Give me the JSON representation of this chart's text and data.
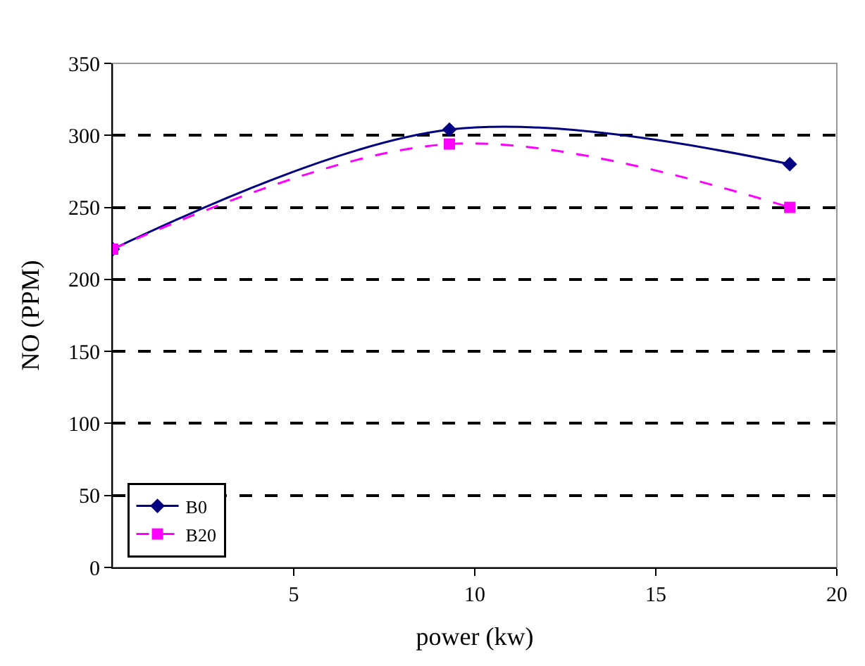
{
  "chart_data": {
    "type": "line",
    "xlabel": "power (kw)",
    "ylabel": "NO (PPM)",
    "xlim": [
      0,
      20
    ],
    "xticks": [
      5,
      10,
      15,
      20
    ],
    "ylim": [
      0,
      350
    ],
    "yticks": [
      0,
      50,
      100,
      150,
      200,
      250,
      300,
      350
    ],
    "grid": "y",
    "legend": "bottom left",
    "series": [
      {
        "name": "B0",
        "color": "#000080",
        "x": [
          0,
          9.3,
          18.7
        ],
        "values": [
          221,
          304,
          280
        ],
        "marker": "diamond",
        "line_style": "solid"
      },
      {
        "name": "B20",
        "color": "#ff00ff",
        "x": [
          0,
          9.3,
          18.7
        ],
        "values": [
          221,
          294,
          250
        ],
        "marker": "square",
        "line_style": "dashed"
      }
    ]
  }
}
